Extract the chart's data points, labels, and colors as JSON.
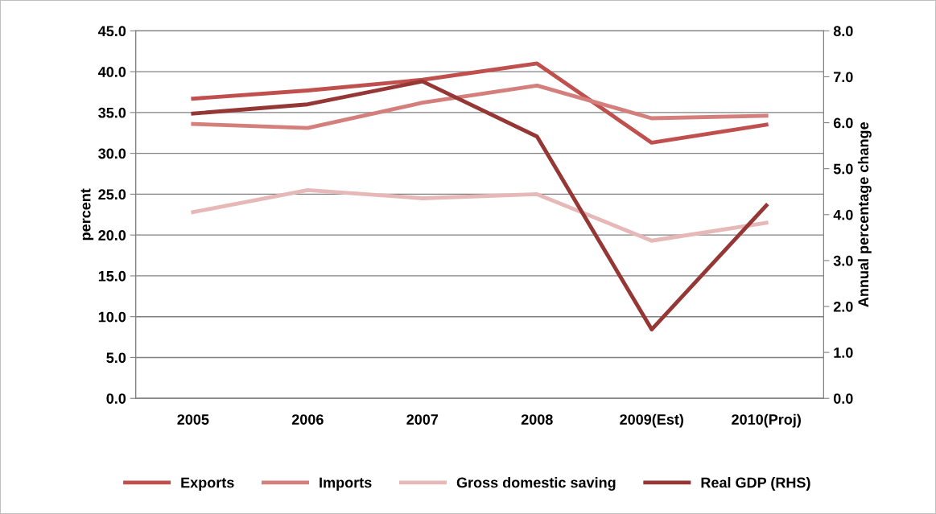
{
  "chart_data": {
    "type": "line",
    "ylabel": "percent",
    "y2label": "Annual percentage change",
    "categories": [
      "2005",
      "2006",
      "2007",
      "2008",
      "2009(Est)",
      "2010(Proj)"
    ],
    "series": [
      {
        "name": "Exports",
        "color": "#c0504d",
        "values": [
          36.7,
          37.7,
          39.0,
          41.0,
          31.3,
          33.5
        ]
      },
      {
        "name": "Imports",
        "color": "#d47f7c",
        "values": [
          33.6,
          33.1,
          36.2,
          38.3,
          34.3,
          34.6
        ]
      },
      {
        "name": "Gross domestic saving",
        "color": "#e6b9b8",
        "values": [
          22.8,
          25.5,
          24.5,
          25.0,
          19.3,
          21.5
        ]
      },
      {
        "name": "Real GDP (RHS)",
        "color": "#953735",
        "axis": "y2",
        "values": [
          6.2,
          6.4,
          6.9,
          5.7,
          1.5,
          4.2
        ]
      }
    ],
    "ylim": [
      0,
      45
    ],
    "yticks": [
      {
        "value": 0,
        "label": "0.0"
      },
      {
        "value": 5,
        "label": "5.0"
      },
      {
        "value": 10,
        "label": "10.0"
      },
      {
        "value": 15,
        "label": "15.0"
      },
      {
        "value": 20,
        "label": "20.0"
      },
      {
        "value": 25,
        "label": "25.0"
      },
      {
        "value": 30,
        "label": "30.0"
      },
      {
        "value": 35,
        "label": "35.0"
      },
      {
        "value": 40,
        "label": "40.0"
      },
      {
        "value": 45,
        "label": "45.0"
      }
    ],
    "y2lim": [
      0,
      8
    ],
    "y2ticks": [
      {
        "value": 0,
        "label": "0.0"
      },
      {
        "value": 1,
        "label": "1.0"
      },
      {
        "value": 2,
        "label": "2.0"
      },
      {
        "value": 3,
        "label": "3.0"
      },
      {
        "value": 4,
        "label": "4.0"
      },
      {
        "value": 5,
        "label": "5.0"
      },
      {
        "value": 6,
        "label": "6.0"
      },
      {
        "value": 7,
        "label": "7.0"
      },
      {
        "value": 8,
        "label": "8.0"
      }
    ],
    "grid": "y",
    "legend": "bottom",
    "marker": "none",
    "line_style": "solid"
  }
}
